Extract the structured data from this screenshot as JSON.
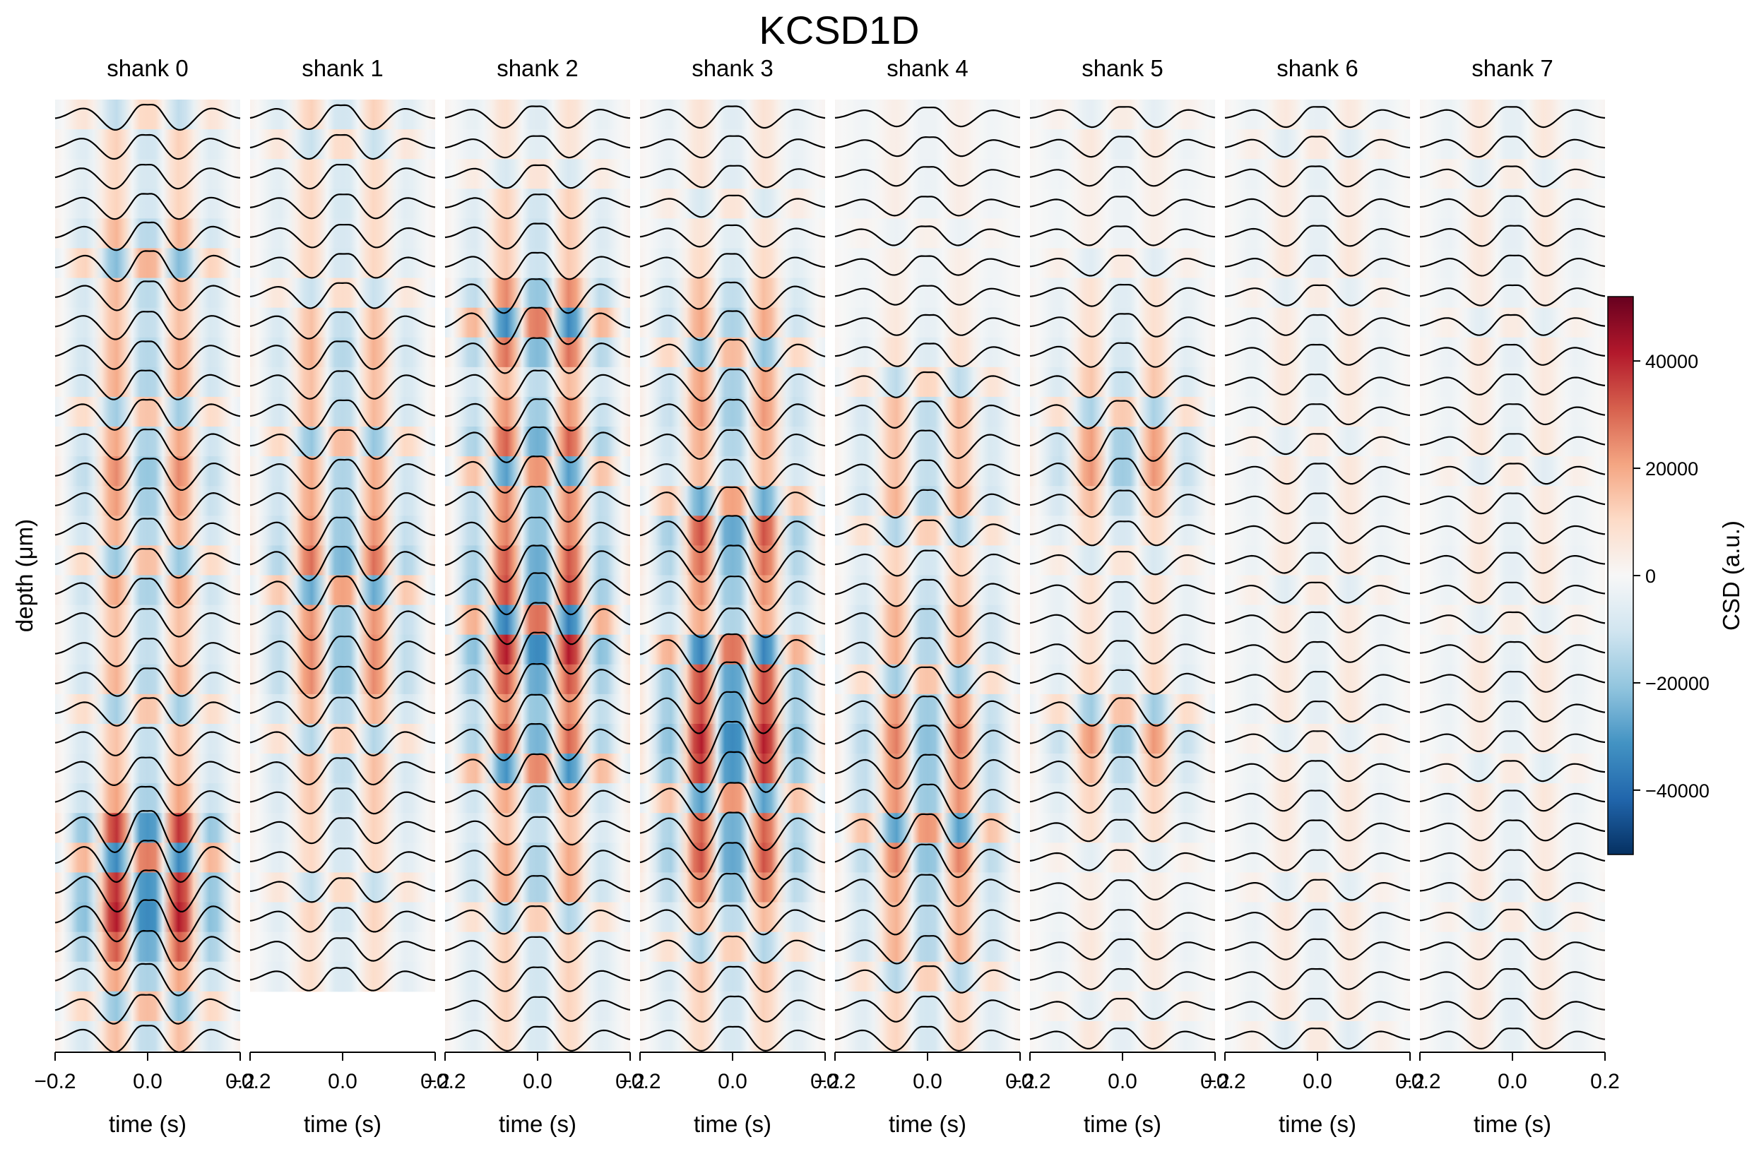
{
  "chart_data": {
    "type": "heatmap",
    "title": "KCSD1D",
    "ylabel": "depth (μm)",
    "xlabel": "time (s)",
    "xlim": [
      -0.2,
      0.2
    ],
    "xticks": [
      -0.2,
      0.0,
      0.2
    ],
    "xtick_labels": [
      "−0.2",
      "0.0",
      "0.2"
    ],
    "grid": false,
    "colormap": "RdBu_r",
    "colorbar": {
      "label": "CSD (a.u.)",
      "range": [
        -52000,
        52000
      ],
      "ticks": [
        40000,
        20000,
        0,
        -20000,
        -40000
      ],
      "tick_labels": [
        "40000",
        "20000",
        "0",
        "−20000",
        "−40000"
      ],
      "colors": {
        "low": "#053061",
        "mid": "#f7f7f7",
        "high": "#67001f"
      }
    },
    "trace_color": "#000000",
    "panels": [
      {
        "name": "shank 0",
        "channels": 32,
        "amplitude": [
          0.35,
          0.3,
          0.3,
          0.35,
          0.45,
          0.55,
          0.5,
          0.45,
          0.45,
          0.5,
          0.55,
          0.55,
          0.6,
          0.6,
          0.55,
          0.5,
          0.5,
          0.45,
          0.45,
          0.45,
          0.45,
          0.45,
          0.45,
          0.5,
          1.0,
          1.0,
          1.0,
          1.0,
          0.9,
          0.6,
          0.5,
          0.4
        ]
      },
      {
        "name": "shank 1",
        "channels": 30,
        "amplitude": [
          0.3,
          0.3,
          0.3,
          0.3,
          0.25,
          0.3,
          0.35,
          0.4,
          0.45,
          0.45,
          0.5,
          0.5,
          0.5,
          0.6,
          0.65,
          0.7,
          0.7,
          0.7,
          0.65,
          0.6,
          0.5,
          0.45,
          0.4,
          0.35,
          0.35,
          0.3,
          0.3,
          0.3,
          0.25,
          0.25
        ]
      },
      {
        "name": "shank 2",
        "channels": 32,
        "amplitude": [
          0.2,
          0.2,
          0.25,
          0.3,
          0.35,
          0.4,
          0.7,
          0.8,
          0.75,
          0.5,
          0.6,
          0.75,
          0.8,
          0.75,
          0.65,
          0.8,
          1.0,
          1.0,
          1.0,
          0.85,
          0.75,
          0.8,
          0.75,
          0.55,
          0.45,
          0.5,
          0.5,
          0.45,
          0.35,
          0.3,
          0.3,
          0.3
        ]
      },
      {
        "name": "shank 3",
        "channels": 32,
        "amplitude": [
          0.2,
          0.2,
          0.2,
          0.2,
          0.2,
          0.3,
          0.4,
          0.5,
          0.6,
          0.6,
          0.55,
          0.5,
          0.5,
          0.7,
          0.8,
          0.8,
          0.7,
          0.5,
          0.85,
          1.0,
          1.0,
          1.0,
          0.95,
          0.85,
          0.85,
          0.8,
          0.7,
          0.5,
          0.4,
          0.35,
          0.35,
          0.3
        ]
      },
      {
        "name": "shank 4",
        "channels": 32,
        "amplitude": [
          0.1,
          0.1,
          0.1,
          0.1,
          0.1,
          0.1,
          0.1,
          0.15,
          0.25,
          0.35,
          0.4,
          0.45,
          0.45,
          0.45,
          0.4,
          0.35,
          0.4,
          0.45,
          0.5,
          0.55,
          0.6,
          0.65,
          0.7,
          0.7,
          0.7,
          0.65,
          0.6,
          0.5,
          0.45,
          0.4,
          0.35,
          0.3
        ]
      },
      {
        "name": "shank 5",
        "channels": 32,
        "amplitude": [
          0.15,
          0.15,
          0.1,
          0.1,
          0.1,
          0.15,
          0.2,
          0.25,
          0.3,
          0.35,
          0.45,
          0.65,
          0.6,
          0.4,
          0.3,
          0.25,
          0.2,
          0.2,
          0.25,
          0.3,
          0.45,
          0.6,
          0.5,
          0.3,
          0.2,
          0.15,
          0.12,
          0.12,
          0.15,
          0.15,
          0.15,
          0.15
        ]
      },
      {
        "name": "shank 6",
        "channels": 32,
        "amplitude": [
          0.15,
          0.15,
          0.15,
          0.15,
          0.15,
          0.15,
          0.15,
          0.15,
          0.15,
          0.15,
          0.15,
          0.15,
          0.15,
          0.15,
          0.15,
          0.15,
          0.15,
          0.15,
          0.15,
          0.15,
          0.15,
          0.15,
          0.15,
          0.15,
          0.15,
          0.15,
          0.15,
          0.15,
          0.15,
          0.15,
          0.15,
          0.15
        ]
      },
      {
        "name": "shank 7",
        "channels": 32,
        "amplitude": [
          0.15,
          0.15,
          0.15,
          0.15,
          0.15,
          0.15,
          0.15,
          0.15,
          0.15,
          0.15,
          0.15,
          0.15,
          0.15,
          0.15,
          0.15,
          0.15,
          0.15,
          0.15,
          0.15,
          0.15,
          0.15,
          0.15,
          0.15,
          0.15,
          0.15,
          0.15,
          0.15,
          0.15,
          0.15,
          0.15,
          0.15,
          0.15
        ]
      }
    ]
  }
}
